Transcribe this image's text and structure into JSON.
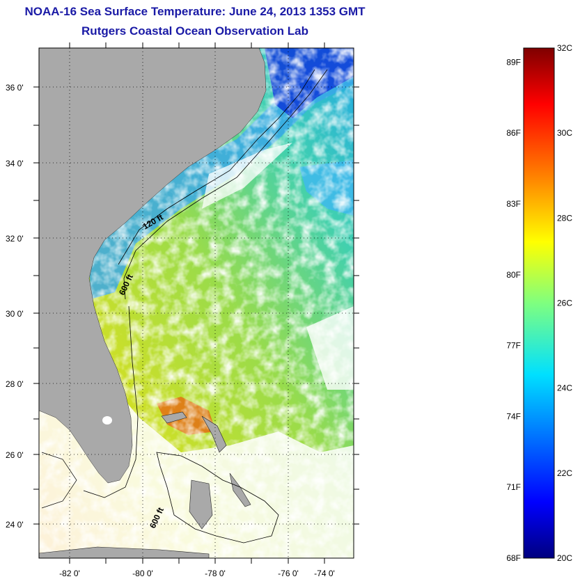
{
  "header": {
    "title": "NOAA-16 Sea Surface Temperature:  June 24, 2013 1353 GMT",
    "subtitle": "Rutgers Coastal Ocean Observation Lab"
  },
  "map": {
    "lat_labels": [
      "36 0'",
      "34 0'",
      "32 0'",
      "30 0'",
      "28 0'",
      "26 0'",
      "24 0'"
    ],
    "lon_labels": [
      "-82 0'",
      "-80 0'",
      "-78 0'",
      "-76 0'",
      "-74 0'"
    ],
    "contour_labels": [
      "120 ft",
      "600 ft",
      "600 ft"
    ],
    "colors": {
      "land": "#a9a9a9",
      "cloud": "#ffffff"
    }
  },
  "colorbar": {
    "fahrenheit_labels": [
      "89F",
      "86F",
      "83F",
      "80F",
      "77F",
      "74F",
      "71F",
      "68F"
    ],
    "celsius_labels": [
      "32C",
      "30C",
      "28C",
      "26C",
      "24C",
      "22C",
      "20C"
    ],
    "range_c": [
      20,
      32
    ],
    "colormap": "jet"
  }
}
